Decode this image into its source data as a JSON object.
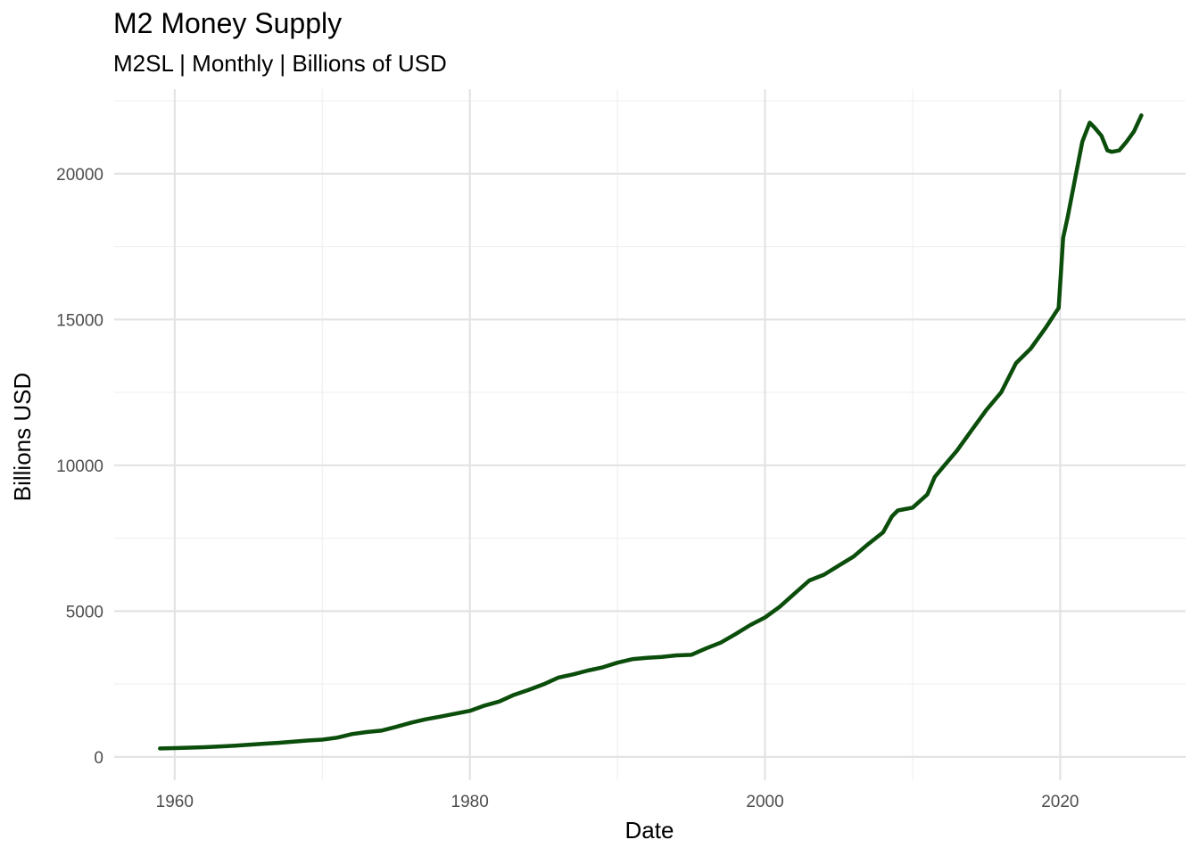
{
  "chart_data": {
    "type": "line",
    "title": "M2 Money Supply",
    "subtitle": "M2SL | Monthly | Billions of USD",
    "xlabel": "Date",
    "ylabel": "Billions USD",
    "xlim": [
      1955.9,
      2028.5
    ],
    "ylim": [
      -800,
      22900
    ],
    "x_ticks": [
      1960,
      1980,
      2000,
      2020
    ],
    "x_tick_labels": [
      "1960",
      "1980",
      "2000",
      "2020"
    ],
    "x_minor_ticks": [
      1970,
      1990,
      2010
    ],
    "y_ticks": [
      0,
      5000,
      10000,
      15000,
      20000
    ],
    "y_tick_labels": [
      "0",
      "5000",
      "10000",
      "15000",
      "20000"
    ],
    "y_minor_ticks": [
      2500,
      7500,
      12500,
      17500,
      22500
    ],
    "grid": true,
    "legend": "none",
    "colors": {
      "line": "#0b4d0b",
      "grid_major": "#e3e3e3",
      "grid_minor": "#f0f0f0"
    },
    "series": [
      {
        "x": [
          1959.0,
          1960.0,
          1962.0,
          1964.0,
          1966.0,
          1967.0,
          1969.0,
          1970.0,
          1971.0,
          1972.0,
          1973.0,
          1974.0,
          1975.0,
          1976.0,
          1977.0,
          1978.0,
          1979.0,
          1980.0,
          1981.0,
          1982.0,
          1983.0,
          1984.0,
          1985.0,
          1986.0,
          1987.0,
          1988.0,
          1989.0,
          1990.0,
          1991.0,
          1992.0,
          1993.0,
          1994.0,
          1995.0,
          1996.0,
          1997.0,
          1998.0,
          1999.0,
          2000.0,
          2001.0,
          2002.0,
          2003.0,
          2004.0,
          2005.0,
          2006.0,
          2007.0,
          2008.0,
          2008.6,
          2009.0,
          2010.0,
          2011.0,
          2011.5,
          2012.0,
          2013.0,
          2014.0,
          2015.0,
          2016.0,
          2017.0,
          2018.0,
          2019.0,
          2019.9,
          2020.2,
          2020.5,
          2021.0,
          2021.5,
          2022.0,
          2022.3,
          2022.8,
          2023.2,
          2023.5,
          2024.0,
          2024.5,
          2025.0,
          2025.5
        ],
        "values": [
          290,
          300,
          330,
          380,
          450,
          480,
          560,
          590,
          660,
          780,
          850,
          900,
          1030,
          1170,
          1290,
          1380,
          1480,
          1580,
          1760,
          1900,
          2130,
          2300,
          2490,
          2720,
          2830,
          2960,
          3070,
          3230,
          3350,
          3400,
          3430,
          3480,
          3500,
          3720,
          3920,
          4210,
          4520,
          4780,
          5150,
          5600,
          6050,
          6250,
          6560,
          6870,
          7300,
          7700,
          8250,
          8450,
          8550,
          9000,
          9600,
          9900,
          10500,
          11200,
          11900,
          12500,
          13500,
          14000,
          14700,
          15400,
          17800,
          18500,
          19800,
          21100,
          21750,
          21600,
          21300,
          20800,
          20750,
          20800,
          21100,
          21450,
          22000
        ]
      }
    ]
  }
}
